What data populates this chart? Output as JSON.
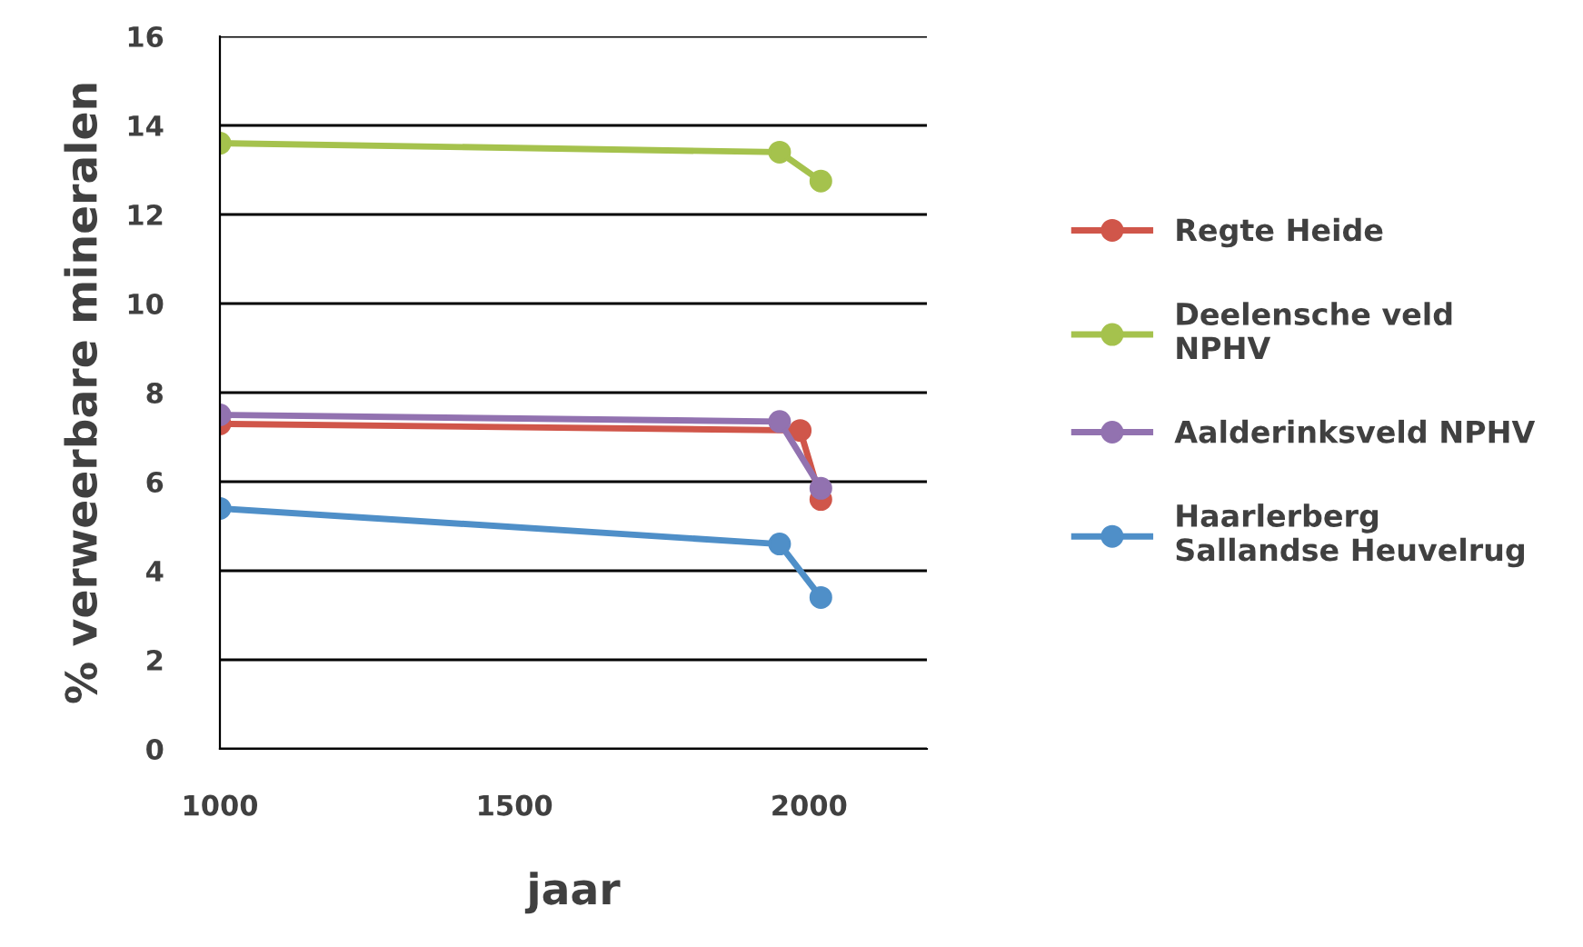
{
  "chart_data": {
    "type": "line",
    "xlabel": "jaar",
    "ylabel": "% verweerbare mineralen",
    "xlim": [
      1000,
      2200
    ],
    "xticks": [
      1000,
      1500,
      2000
    ],
    "ylim": [
      0,
      16
    ],
    "yticks": [
      0,
      2,
      4,
      6,
      8,
      10,
      12,
      14,
      16
    ],
    "grid": "y",
    "legend": "right",
    "marker": "circle",
    "line_style": "solid",
    "series": [
      {
        "name": "Regte Heide",
        "color": "#d0564a",
        "x": [
          1000,
          1985,
          2020
        ],
        "values": [
          7.3,
          7.15,
          5.6
        ]
      },
      {
        "name": "Deelensche veld\nNPHV",
        "color": "#a5c24d",
        "x": [
          1000,
          1950,
          2020
        ],
        "values": [
          13.6,
          13.4,
          12.75
        ]
      },
      {
        "name": "Aalderinksveld NPHV",
        "color": "#9272b0",
        "x": [
          1000,
          1950,
          2020
        ],
        "values": [
          7.5,
          7.35,
          5.85
        ]
      },
      {
        "name": "Haarlerberg\nSallandse Heuvelrug",
        "color": "#4f8fc8",
        "x": [
          1000,
          1950,
          2020
        ],
        "values": [
          5.4,
          4.6,
          3.4
        ]
      }
    ]
  }
}
